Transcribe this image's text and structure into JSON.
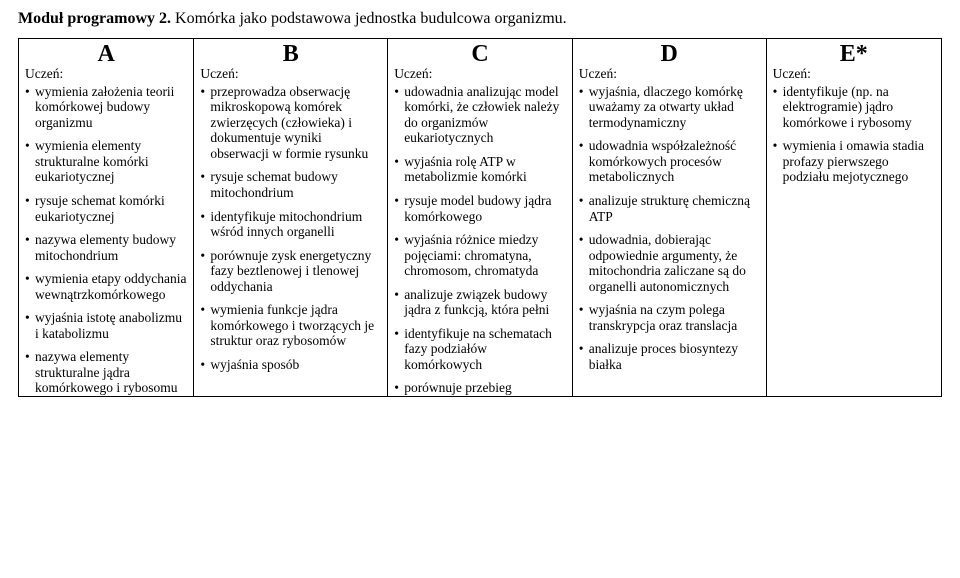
{
  "title_bold": "Moduł programowy 2.",
  "title_rest": " Komórka jako podstawowa jednostka budulcowa organizmu.",
  "table": {
    "colors": {
      "border": "#000000",
      "background": "#ffffff",
      "text": "#000000"
    },
    "font_family": "Times New Roman",
    "columns": [
      {
        "head": "A",
        "lead": "Uczeń:",
        "items": [
          "wymienia założenia teorii komórkowej budowy organizmu",
          "wymienia elementy strukturalne komórki eukariotycznej",
          "rysuje schemat komórki eukariotycznej",
          "nazywa elementy budowy mitochondrium",
          "wymienia etapy oddychania wewnątrzkomórkowego",
          "wyjaśnia istotę anabolizmu i katabolizmu",
          "nazywa elementy strukturalne jądra komórkowego i rybosomu"
        ]
      },
      {
        "head": "B",
        "lead": "Uczeń:",
        "items": [
          "przeprowadza obserwację mikroskopową komórek zwierzęcych (człowieka) i dokumentuje wyniki obserwacji w formie rysunku",
          "rysuje schemat budowy mitochondrium",
          "identyfikuje mitochondrium wśród innych organelli",
          "porównuje zysk energetyczny fazy beztlenowej i tlenowej oddychania",
          "wymienia funkcje jądra komórkowego i tworzących je struktur oraz rybosomów",
          "wyjaśnia sposób"
        ]
      },
      {
        "head": "C",
        "lead": "Uczeń:",
        "items": [
          "udowadnia analizując model komórki, że człowiek należy do organizmów eukariotycznych",
          "wyjaśnia rolę ATP w metabolizmie komórki",
          "rysuje model budowy jądra komórkowego",
          "wyjaśnia różnice miedzy pojęciami: chromatyna, chromosom, chromatyda",
          "analizuje związek budowy jądra z funkcją, która pełni",
          "identyfikuje na schematach fazy podziałów komórkowych",
          "porównuje przebieg"
        ]
      },
      {
        "head": "D",
        "lead": "Uczeń:",
        "items": [
          "wyjaśnia, dlaczego komórkę uważamy za otwarty układ termodynamiczny",
          "udowadnia współzależność komórkowych procesów metabolicznych",
          "analizuje strukturę chemiczną ATP",
          "udowadnia, dobierając odpowiednie argumenty, że mitochondria zaliczane są do organelli autonomicznych",
          "wyjaśnia na czym polega transkrypcja oraz translacja",
          "analizuje proces biosyntezy białka"
        ]
      },
      {
        "head": "E*",
        "lead": "Uczeń:",
        "items": [
          "identyfikuje (np. na elektrogramie) jądro komórkowe i rybosomy",
          "wymienia i omawia stadia profazy pierwszego podziału mejotycznego"
        ]
      }
    ]
  }
}
